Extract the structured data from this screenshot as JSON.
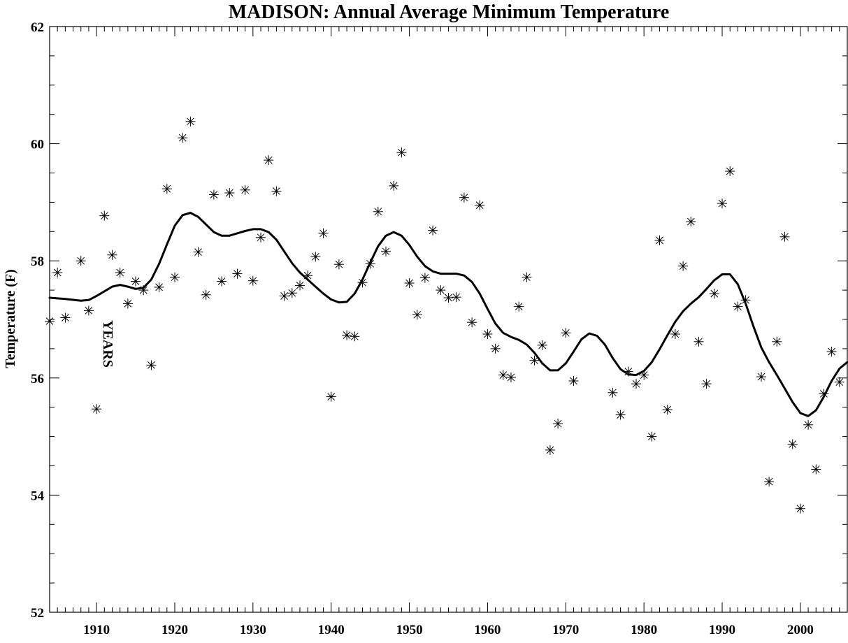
{
  "chart_data": {
    "type": "scatter",
    "title": "MADISON: Annual Average Minimum Temperature",
    "xlabel": "YEARS",
    "ylabel": "Temperature (F)",
    "xlim": [
      1904,
      2006
    ],
    "ylim": [
      52,
      62
    ],
    "x_ticks": [
      1910,
      1920,
      1930,
      1940,
      1950,
      1960,
      1970,
      1980,
      1990,
      2000
    ],
    "y_ticks": [
      52,
      54,
      56,
      58,
      60,
      62
    ],
    "grid": false,
    "series": [
      {
        "kind": "scatter",
        "marker": "asterisk",
        "points": [
          [
            1904,
            56.97
          ],
          [
            1905,
            57.8
          ],
          [
            1906,
            57.03
          ],
          [
            1908,
            58.0
          ],
          [
            1909,
            57.15
          ],
          [
            1910,
            55.47
          ],
          [
            1911,
            58.77
          ],
          [
            1912,
            58.1
          ],
          [
            1913,
            57.8
          ],
          [
            1914,
            57.27
          ],
          [
            1915,
            57.65
          ],
          [
            1916,
            57.5
          ],
          [
            1917,
            56.22
          ],
          [
            1918,
            57.55
          ],
          [
            1919,
            59.23
          ],
          [
            1920,
            57.72
          ],
          [
            1921,
            60.1
          ],
          [
            1922,
            60.38
          ],
          [
            1923,
            58.15
          ],
          [
            1924,
            57.42
          ],
          [
            1925,
            59.13
          ],
          [
            1926,
            57.65
          ],
          [
            1927,
            59.16
          ],
          [
            1928,
            57.78
          ],
          [
            1929,
            59.21
          ],
          [
            1930,
            57.66
          ],
          [
            1931,
            58.4
          ],
          [
            1932,
            59.72
          ],
          [
            1933,
            59.19
          ],
          [
            1934,
            57.4
          ],
          [
            1935,
            57.45
          ],
          [
            1936,
            57.58
          ],
          [
            1937,
            57.75
          ],
          [
            1938,
            58.07
          ],
          [
            1939,
            58.47
          ],
          [
            1940,
            55.68
          ],
          [
            1941,
            57.94
          ],
          [
            1942,
            56.73
          ],
          [
            1943,
            56.71
          ],
          [
            1944,
            57.63
          ],
          [
            1945,
            57.95
          ],
          [
            1946,
            58.84
          ],
          [
            1947,
            58.16
          ],
          [
            1948,
            59.28
          ],
          [
            1949,
            59.85
          ],
          [
            1950,
            57.62
          ],
          [
            1951,
            57.08
          ],
          [
            1952,
            57.71
          ],
          [
            1953,
            58.52
          ],
          [
            1954,
            57.5
          ],
          [
            1955,
            57.37
          ],
          [
            1956,
            57.38
          ],
          [
            1957,
            59.08
          ],
          [
            1958,
            56.95
          ],
          [
            1959,
            58.95
          ],
          [
            1960,
            56.75
          ],
          [
            1961,
            56.5
          ],
          [
            1962,
            56.05
          ],
          [
            1963,
            56.01
          ],
          [
            1964,
            57.22
          ],
          [
            1965,
            57.72
          ],
          [
            1966,
            56.3
          ],
          [
            1967,
            56.56
          ],
          [
            1968,
            54.77
          ],
          [
            1969,
            55.22
          ],
          [
            1970,
            56.77
          ],
          [
            1971,
            55.95
          ],
          [
            1976,
            55.75
          ],
          [
            1977,
            55.37
          ],
          [
            1978,
            56.11
          ],
          [
            1979,
            55.9
          ],
          [
            1980,
            56.05
          ],
          [
            1981,
            55.0
          ],
          [
            1982,
            58.35
          ],
          [
            1983,
            55.46
          ],
          [
            1984,
            56.75
          ],
          [
            1985,
            57.91
          ],
          [
            1986,
            58.67
          ],
          [
            1987,
            56.62
          ],
          [
            1988,
            55.9
          ],
          [
            1989,
            57.44
          ],
          [
            1990,
            58.98
          ],
          [
            1991,
            59.53
          ],
          [
            1992,
            57.22
          ],
          [
            1993,
            57.33
          ],
          [
            1995,
            56.02
          ],
          [
            1996,
            54.23
          ],
          [
            1997,
            56.62
          ],
          [
            1998,
            58.41
          ],
          [
            1999,
            54.87
          ],
          [
            2000,
            53.77
          ],
          [
            2001,
            55.2
          ],
          [
            2002,
            54.44
          ],
          [
            2003,
            55.73
          ],
          [
            2004,
            56.45
          ],
          [
            2005,
            55.93
          ]
        ]
      },
      {
        "kind": "line",
        "style": "smoothed",
        "points": [
          [
            1904,
            57.37
          ],
          [
            1906,
            57.35
          ],
          [
            1908,
            57.32
          ],
          [
            1909,
            57.33
          ],
          [
            1910,
            57.4
          ],
          [
            1911,
            57.48
          ],
          [
            1912,
            57.56
          ],
          [
            1913,
            57.59
          ],
          [
            1914,
            57.56
          ],
          [
            1915,
            57.52
          ],
          [
            1916,
            57.54
          ],
          [
            1917,
            57.68
          ],
          [
            1918,
            57.95
          ],
          [
            1919,
            58.28
          ],
          [
            1920,
            58.6
          ],
          [
            1921,
            58.78
          ],
          [
            1922,
            58.82
          ],
          [
            1923,
            58.75
          ],
          [
            1924,
            58.62
          ],
          [
            1925,
            58.49
          ],
          [
            1926,
            58.43
          ],
          [
            1927,
            58.43
          ],
          [
            1928,
            58.47
          ],
          [
            1929,
            58.51
          ],
          [
            1930,
            58.54
          ],
          [
            1931,
            58.54
          ],
          [
            1932,
            58.49
          ],
          [
            1933,
            58.36
          ],
          [
            1934,
            58.16
          ],
          [
            1935,
            57.96
          ],
          [
            1936,
            57.8
          ],
          [
            1937,
            57.68
          ],
          [
            1938,
            57.56
          ],
          [
            1939,
            57.44
          ],
          [
            1940,
            57.34
          ],
          [
            1941,
            57.29
          ],
          [
            1942,
            57.3
          ],
          [
            1943,
            57.44
          ],
          [
            1944,
            57.68
          ],
          [
            1945,
            57.97
          ],
          [
            1946,
            58.25
          ],
          [
            1947,
            58.43
          ],
          [
            1948,
            58.49
          ],
          [
            1949,
            58.43
          ],
          [
            1950,
            58.27
          ],
          [
            1951,
            58.07
          ],
          [
            1952,
            57.91
          ],
          [
            1953,
            57.82
          ],
          [
            1954,
            57.78
          ],
          [
            1955,
            57.78
          ],
          [
            1956,
            57.78
          ],
          [
            1957,
            57.75
          ],
          [
            1958,
            57.64
          ],
          [
            1959,
            57.44
          ],
          [
            1960,
            57.18
          ],
          [
            1961,
            56.93
          ],
          [
            1962,
            56.77
          ],
          [
            1963,
            56.7
          ],
          [
            1964,
            56.65
          ],
          [
            1965,
            56.57
          ],
          [
            1966,
            56.43
          ],
          [
            1967,
            56.25
          ],
          [
            1968,
            56.13
          ],
          [
            1969,
            56.13
          ],
          [
            1970,
            56.25
          ],
          [
            1971,
            56.45
          ],
          [
            1972,
            56.66
          ],
          [
            1973,
            56.76
          ],
          [
            1974,
            56.72
          ],
          [
            1975,
            56.57
          ],
          [
            1976,
            56.34
          ],
          [
            1977,
            56.15
          ],
          [
            1978,
            56.06
          ],
          [
            1979,
            56.05
          ],
          [
            1980,
            56.12
          ],
          [
            1981,
            56.27
          ],
          [
            1982,
            56.49
          ],
          [
            1983,
            56.73
          ],
          [
            1984,
            56.96
          ],
          [
            1985,
            57.14
          ],
          [
            1986,
            57.27
          ],
          [
            1987,
            57.38
          ],
          [
            1988,
            57.52
          ],
          [
            1989,
            57.67
          ],
          [
            1990,
            57.77
          ],
          [
            1991,
            57.77
          ],
          [
            1992,
            57.6
          ],
          [
            1993,
            57.27
          ],
          [
            1994,
            56.88
          ],
          [
            1995,
            56.52
          ],
          [
            1996,
            56.27
          ],
          [
            1997,
            56.05
          ],
          [
            1998,
            55.82
          ],
          [
            1999,
            55.59
          ],
          [
            2000,
            55.4
          ],
          [
            2001,
            55.35
          ],
          [
            2002,
            55.45
          ],
          [
            2003,
            55.68
          ],
          [
            2004,
            55.95
          ],
          [
            2005,
            56.16
          ],
          [
            2006,
            56.27
          ]
        ]
      }
    ]
  }
}
